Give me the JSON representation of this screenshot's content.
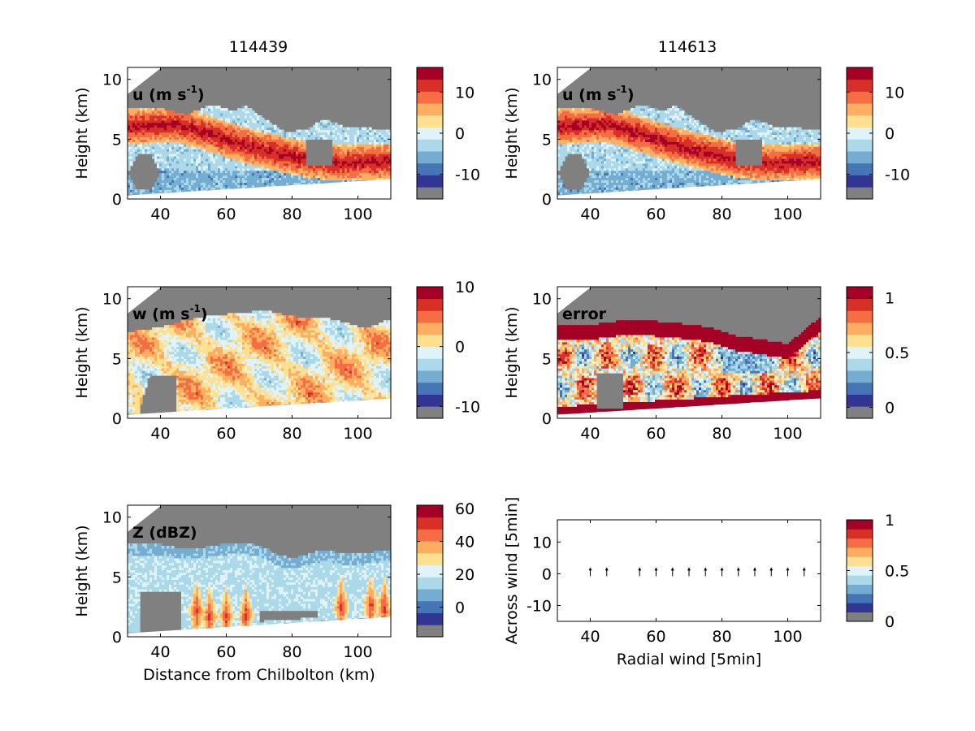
{
  "figure": {
    "left_title": "114439",
    "right_title": "114613"
  },
  "colorbar_colors": [
    "#808080",
    "#313695",
    "#4575b4",
    "#74add1",
    "#abd9e9",
    "#e0f3f8",
    "#fee090",
    "#fdae61",
    "#f46d43",
    "#d73027",
    "#a50026"
  ],
  "chart_data": [
    {
      "type": "heatmap",
      "panel": "left-1",
      "label": "u (m s",
      "label_sup": "-1",
      "label_tail": ")",
      "xlim": [
        30,
        110
      ],
      "ylim": [
        0,
        11
      ],
      "xticks": [
        40,
        60,
        80,
        100
      ],
      "yticks": [
        0,
        5,
        10
      ],
      "ylabel": "Height (km)",
      "xlabel": "",
      "colorbar": {
        "min": -16,
        "max": 16,
        "ticks": [
          10,
          0,
          -10
        ],
        "tick_labels": [
          "10",
          "0",
          "-10"
        ]
      },
      "field": "u",
      "layers": [
        {
          "value": 0,
          "profile": [
            [
              30,
              7.4
            ],
            [
              40,
              7.6
            ],
            [
              50,
              7.3
            ],
            [
              60,
              7.8
            ],
            [
              70,
              7.2
            ],
            [
              80,
              7.0
            ],
            [
              90,
              6.6
            ],
            [
              100,
              5.8
            ],
            [
              110,
              5.6
            ]
          ]
        },
        {
          "value": 9,
          "profile": [
            [
              30,
              6.3
            ],
            [
              45,
              6.5
            ],
            [
              55,
              5.5
            ],
            [
              65,
              5.0
            ],
            [
              72,
              4.2
            ],
            [
              80,
              3.5
            ],
            [
              90,
              3.3
            ],
            [
              100,
              3.2
            ],
            [
              110,
              3.3
            ]
          ]
        },
        {
          "value": 14,
          "profile": [
            [
              30,
              5.9
            ],
            [
              45,
              6.0
            ],
            [
              55,
              5.0
            ],
            [
              65,
              4.5
            ],
            [
              72,
              3.9
            ]
          ]
        }
      ]
    },
    {
      "type": "heatmap",
      "panel": "right-1",
      "label": "u (m s",
      "label_sup": "-1",
      "label_tail": ")",
      "xlim": [
        30,
        110
      ],
      "ylim": [
        0,
        11
      ],
      "xticks": [
        40,
        60,
        80,
        100
      ],
      "yticks": [
        0,
        5,
        10
      ],
      "ylabel": "Height (km)",
      "xlabel": "",
      "colorbar": {
        "min": -16,
        "max": 16,
        "ticks": [
          10,
          0,
          -10
        ],
        "tick_labels": [
          "10",
          "0",
          "-10"
        ]
      },
      "field": "u",
      "layers": [
        {
          "value": 0,
          "profile": [
            [
              30,
              7.4
            ],
            [
              40,
              7.6
            ],
            [
              50,
              7.3
            ],
            [
              60,
              7.8
            ],
            [
              70,
              7.2
            ],
            [
              80,
              7.0
            ],
            [
              90,
              6.6
            ],
            [
              100,
              5.8
            ],
            [
              110,
              5.6
            ]
          ]
        },
        {
          "value": 9,
          "profile": [
            [
              30,
              6.3
            ],
            [
              45,
              6.5
            ],
            [
              55,
              5.5
            ],
            [
              65,
              5.0
            ],
            [
              72,
              4.2
            ],
            [
              80,
              3.5
            ],
            [
              90,
              3.3
            ],
            [
              100,
              3.2
            ],
            [
              110,
              3.3
            ]
          ]
        },
        {
          "value": 14,
          "profile": [
            [
              30,
              5.9
            ],
            [
              45,
              6.0
            ],
            [
              55,
              5.0
            ],
            [
              65,
              4.5
            ],
            [
              72,
              3.9
            ]
          ]
        }
      ]
    },
    {
      "type": "heatmap",
      "panel": "left-2",
      "label": "w (m s",
      "label_sup": "-1",
      "label_tail": ")",
      "xlim": [
        30,
        110
      ],
      "ylim": [
        0,
        11
      ],
      "xticks": [
        40,
        60,
        80,
        100
      ],
      "yticks": [
        0,
        5,
        10
      ],
      "ylabel": "Height (km)",
      "xlabel": "",
      "colorbar": {
        "min": -12,
        "max": 10,
        "ticks": [
          10,
          0,
          -10
        ],
        "tick_labels": [
          "10",
          "0",
          "-10"
        ]
      },
      "field": "w"
    },
    {
      "type": "heatmap",
      "panel": "right-2",
      "label": "error",
      "label_sup": "",
      "label_tail": "",
      "xlim": [
        30,
        110
      ],
      "ylim": [
        0,
        11
      ],
      "xticks": [
        40,
        60,
        80,
        100
      ],
      "yticks": [
        0,
        5,
        10
      ],
      "ylabel": "Height (km)",
      "xlabel": "",
      "colorbar": {
        "min": -0.1,
        "max": 1.1,
        "ticks": [
          1,
          0.5,
          0
        ],
        "tick_labels": [
          "1",
          "0.5",
          "0"
        ]
      },
      "field": "error"
    },
    {
      "type": "heatmap",
      "panel": "left-3",
      "label": "Z (dBZ)",
      "label_sup": "",
      "label_tail": "",
      "xlim": [
        30,
        110
      ],
      "ylim": [
        0,
        11
      ],
      "xticks": [
        40,
        60,
        80,
        100
      ],
      "yticks": [
        0,
        5,
        10
      ],
      "ylabel": "Height (km)",
      "xlabel": "Distance from Chilbolton (km)",
      "colorbar": {
        "min": -18,
        "max": 62,
        "ticks": [
          60,
          40,
          20,
          0
        ],
        "tick_labels": [
          "60",
          "40",
          "20",
          "0"
        ]
      },
      "field": "Z"
    },
    {
      "type": "scatter",
      "panel": "right-3",
      "label": "",
      "xlim": [
        30,
        110
      ],
      "ylim": [
        -15,
        17
      ],
      "xticks": [
        40,
        60,
        80,
        100
      ],
      "yticks": [
        10,
        0,
        -10
      ],
      "ylabel": "Across wind [5min]",
      "xlabel": "Radial wind [5min]",
      "colorbar": {
        "min": 0,
        "max": 1,
        "ticks": [
          1,
          0.5,
          0
        ],
        "tick_labels": [
          "1",
          "0.5",
          "0"
        ]
      },
      "x": [
        40,
        45,
        55,
        60,
        65,
        70,
        75,
        80,
        85,
        90,
        95,
        100,
        105
      ],
      "arrow_y": [
        0,
        0,
        0,
        0,
        0,
        0,
        0,
        0,
        0,
        0,
        0,
        0,
        0
      ]
    }
  ]
}
